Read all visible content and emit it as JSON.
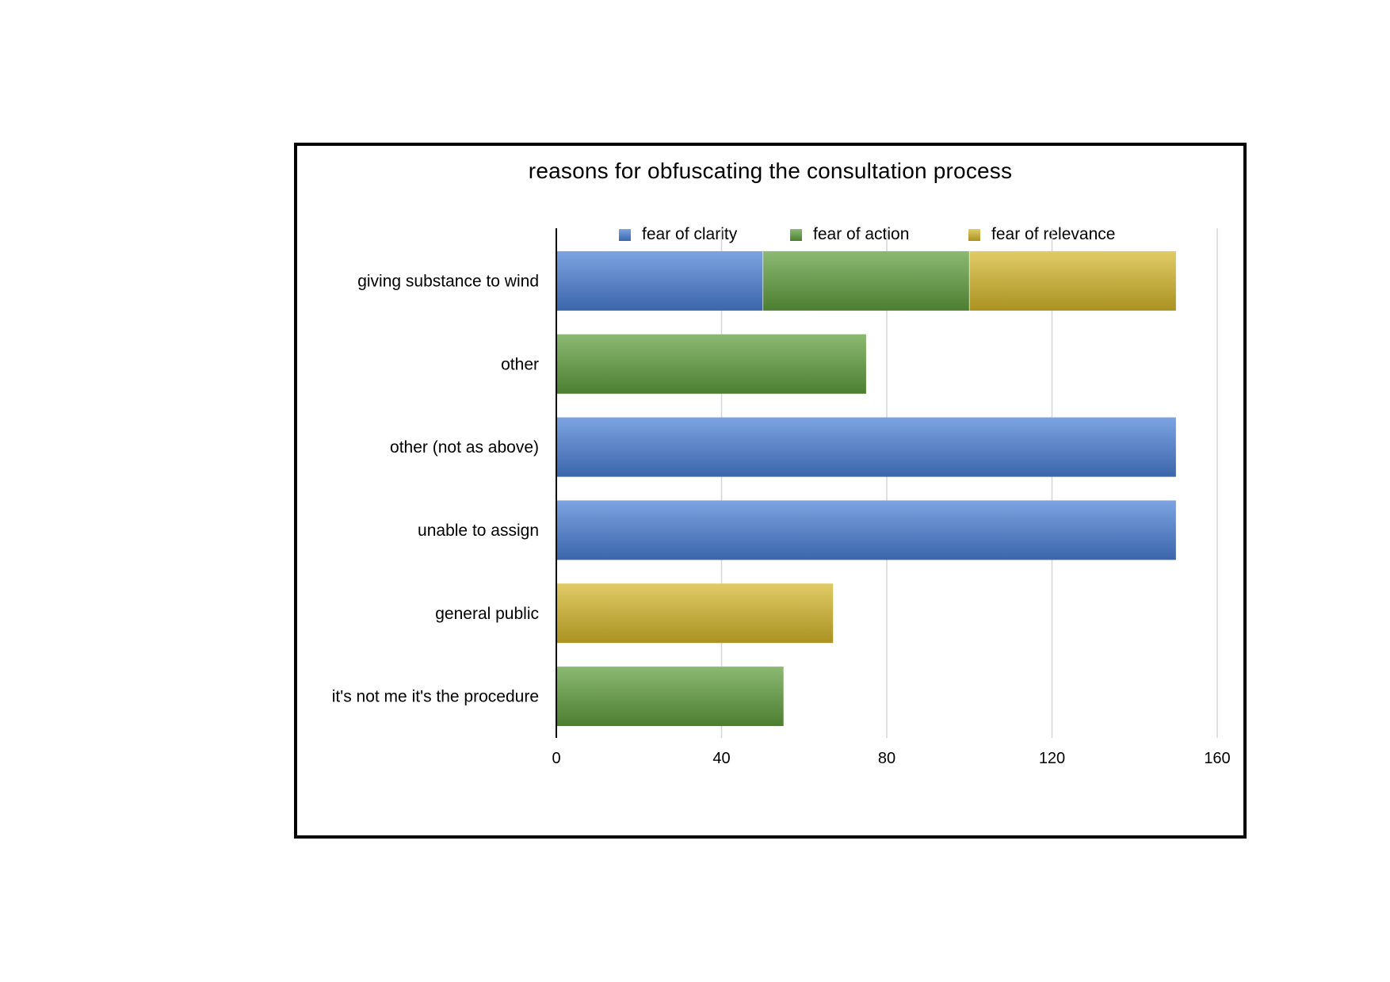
{
  "chart_data": {
    "type": "bar",
    "orientation": "horizontal",
    "stacked": true,
    "title": "reasons for obfuscating the consultation process",
    "xlabel": "",
    "ylabel": "",
    "categories": [
      "giving substance to wind",
      "other",
      "other (not as above)",
      "unable to assign",
      "general public",
      "it's not me it's the procedure"
    ],
    "series": [
      {
        "name": "fear of clarity",
        "color": "#4a7fd6",
        "values": [
          50,
          0,
          150,
          150,
          0,
          0
        ]
      },
      {
        "name": "fear of action",
        "color": "#5f9e3c",
        "values": [
          50,
          75,
          0,
          0,
          0,
          55
        ]
      },
      {
        "name": "fear of relevance",
        "color": "#d4b72a",
        "values": [
          50,
          0,
          0,
          0,
          67,
          0
        ]
      }
    ],
    "xlim": [
      0,
      160
    ],
    "xticks": [
      "0",
      "40",
      "80",
      "120",
      "160"
    ],
    "grid": true,
    "legend_position": "top"
  }
}
